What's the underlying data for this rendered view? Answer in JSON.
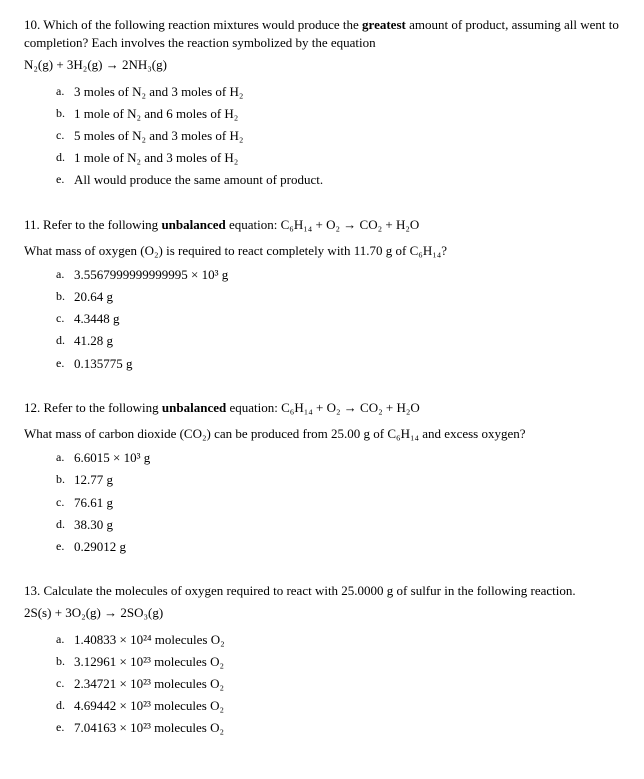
{
  "q10": {
    "stem_a": "10. Which of the following reaction mixtures would produce the ",
    "stem_bold": "greatest",
    "stem_b": " amount of product, assuming all went to completion? Each involves the reaction symbolized by the equation",
    "eq": "N₂(g) + 3H₂(g) → 2NH₃(g)",
    "opts": {
      "a": "3 moles of N₂ and 3 moles of H₂",
      "b": "1 mole of N₂ and 6 moles of H₂",
      "c": "5 moles of N₂ and 3 moles of H₂",
      "d": "1 mole of N₂ and 3 moles of H₂",
      "e": "All would produce the same amount of product."
    }
  },
  "q11": {
    "stem_a": "11. Refer to the following ",
    "stem_bold": "unbalanced",
    "stem_b": " equation: ",
    "eq": "C₆H₁₄ + O₂ → CO₂ + H₂O",
    "sub": "What mass of oxygen (O₂) is required to react completely with 11.70 g of C₆H₁₄?",
    "opts": {
      "a": "3.5567999999999995 × 10³ g",
      "b": "20.64 g",
      "c": "4.3448 g",
      "d": "41.28 g",
      "e": "0.135775 g"
    }
  },
  "q12": {
    "stem_a": "12. Refer to the following ",
    "stem_bold": "unbalanced",
    "stem_b": " equation: ",
    "eq": "C₆H₁₄ + O₂ → CO₂ + H₂O",
    "sub": "What mass of carbon dioxide (CO₂) can be produced from 25.00 g of C₆H₁₄ and excess oxygen?",
    "opts": {
      "a": "6.6015 × 10³ g",
      "b": "12.77 g",
      "c": "76.61 g",
      "d": "38.30 g",
      "e": "0.29012 g"
    }
  },
  "q13": {
    "stem": "13. Calculate the molecules of oxygen required to react with 25.0000 g of sulfur in the following reaction.",
    "eq": "2S(s) + 3O₂(g) → 2SO₃(g)",
    "opts": {
      "a": "1.40833 × 10²⁴ molecules O₂",
      "b": "3.12961 × 10²³ molecules O₂",
      "c": "2.34721 × 10²³ molecules O₂",
      "d": "4.69442 × 10²³ molecules O₂",
      "e": "7.04163 × 10²³ molecules O₂"
    }
  },
  "letters": {
    "a": "a.",
    "b": "b.",
    "c": "c.",
    "d": "d.",
    "e": "e."
  }
}
